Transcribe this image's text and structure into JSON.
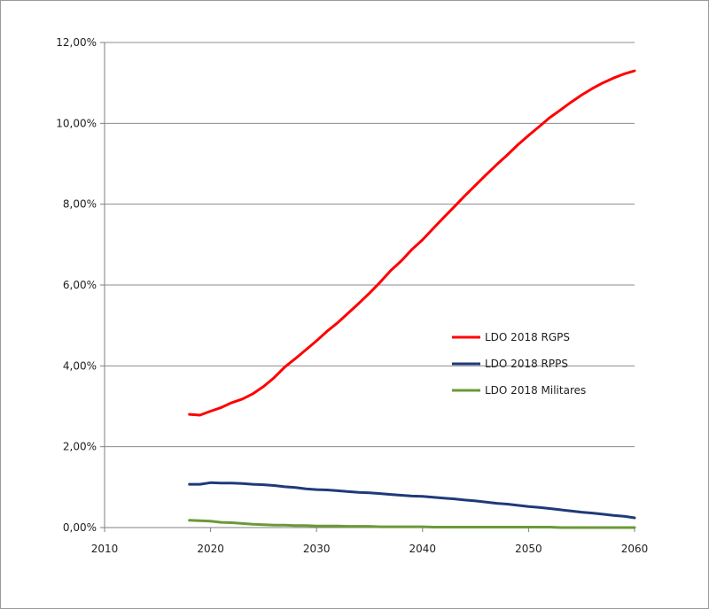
{
  "chart_data": {
    "type": "line",
    "title": "",
    "xlabel": "",
    "ylabel": "",
    "xlim": [
      2010,
      2060
    ],
    "ylim": [
      0,
      12
    ],
    "x_ticks": [
      2010,
      2020,
      2030,
      2040,
      2050,
      2060
    ],
    "x_tick_labels": [
      "2010",
      "2020",
      "2030",
      "2040",
      "2050",
      "2060"
    ],
    "y_ticks": [
      0,
      2,
      4,
      6,
      8,
      10,
      12
    ],
    "y_tick_labels": [
      "0,00%",
      "2,00%",
      "4,00%",
      "6,00%",
      "8,00%",
      "10,00%",
      "12,00%"
    ],
    "grid": "horizontal",
    "legend_position": "center-right",
    "series": [
      {
        "name": "LDO 2018 RGPS",
        "color": "#ff0000",
        "x": [
          2018,
          2019,
          2020,
          2021,
          2022,
          2023,
          2024,
          2025,
          2026,
          2027,
          2028,
          2029,
          2030,
          2031,
          2032,
          2033,
          2034,
          2035,
          2036,
          2037,
          2038,
          2039,
          2040,
          2041,
          2042,
          2043,
          2044,
          2045,
          2046,
          2047,
          2048,
          2049,
          2050,
          2051,
          2052,
          2053,
          2054,
          2055,
          2056,
          2057,
          2058,
          2059,
          2060
        ],
        "values": [
          2.8,
          2.78,
          2.88,
          2.97,
          3.09,
          3.18,
          3.31,
          3.49,
          3.71,
          3.97,
          4.18,
          4.4,
          4.62,
          4.86,
          5.07,
          5.31,
          5.55,
          5.8,
          6.07,
          6.36,
          6.6,
          6.88,
          7.12,
          7.4,
          7.67,
          7.94,
          8.21,
          8.47,
          8.73,
          8.98,
          9.22,
          9.47,
          9.7,
          9.92,
          10.14,
          10.33,
          10.52,
          10.7,
          10.86,
          11.0,
          11.12,
          11.22,
          11.3
        ]
      },
      {
        "name": "LDO 2018 RPPS",
        "color": "#1f3a7a",
        "x": [
          2018,
          2019,
          2020,
          2021,
          2022,
          2023,
          2024,
          2025,
          2026,
          2027,
          2028,
          2029,
          2030,
          2031,
          2032,
          2033,
          2034,
          2035,
          2036,
          2037,
          2038,
          2039,
          2040,
          2041,
          2042,
          2043,
          2044,
          2045,
          2046,
          2047,
          2048,
          2049,
          2050,
          2051,
          2052,
          2053,
          2054,
          2055,
          2056,
          2057,
          2058,
          2059,
          2060
        ],
        "values": [
          1.07,
          1.07,
          1.11,
          1.1,
          1.1,
          1.09,
          1.07,
          1.06,
          1.04,
          1.01,
          0.99,
          0.96,
          0.94,
          0.93,
          0.91,
          0.89,
          0.87,
          0.86,
          0.84,
          0.82,
          0.8,
          0.78,
          0.77,
          0.75,
          0.73,
          0.71,
          0.68,
          0.66,
          0.63,
          0.6,
          0.58,
          0.55,
          0.52,
          0.5,
          0.47,
          0.44,
          0.41,
          0.38,
          0.36,
          0.33,
          0.3,
          0.28,
          0.24
        ]
      },
      {
        "name": "LDO 2018 Militares",
        "color": "#6b9a36",
        "x": [
          2018,
          2019,
          2020,
          2021,
          2022,
          2023,
          2024,
          2025,
          2026,
          2027,
          2028,
          2029,
          2030,
          2031,
          2032,
          2033,
          2034,
          2035,
          2036,
          2037,
          2038,
          2039,
          2040,
          2041,
          2042,
          2043,
          2044,
          2045,
          2046,
          2047,
          2048,
          2049,
          2050,
          2051,
          2052,
          2053,
          2054,
          2055,
          2056,
          2057,
          2058,
          2059,
          2060
        ],
        "values": [
          0.18,
          0.17,
          0.16,
          0.13,
          0.12,
          0.1,
          0.08,
          0.07,
          0.06,
          0.06,
          0.05,
          0.05,
          0.04,
          0.04,
          0.04,
          0.03,
          0.03,
          0.03,
          0.02,
          0.02,
          0.02,
          0.02,
          0.02,
          0.01,
          0.01,
          0.01,
          0.01,
          0.01,
          0.01,
          0.01,
          0.01,
          0.01,
          0.01,
          0.01,
          0.01,
          0.0,
          0.0,
          0.0,
          0.0,
          0.0,
          0.0,
          0.0,
          0.0
        ]
      }
    ]
  }
}
